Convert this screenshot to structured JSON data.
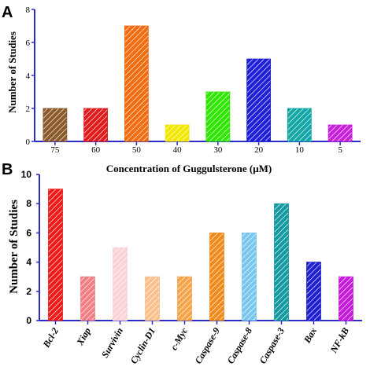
{
  "chart_data": [
    {
      "panel": "A",
      "type": "bar",
      "categories": [
        "75",
        "60",
        "50",
        "40",
        "30",
        "20",
        "10",
        "5"
      ],
      "values": [
        2,
        2,
        7,
        1,
        3,
        5,
        2,
        1
      ],
      "colors": [
        "#8B5A2B",
        "#E31A1C",
        "#F26B0F",
        "#F2E600",
        "#2EE600",
        "#1F1FD9",
        "#12A6A6",
        "#C71FD9"
      ],
      "xlabel": "Concentration of Guggulsterone (μM)",
      "ylabel": "Number of Studies",
      "ylim": [
        0,
        8
      ],
      "yticks": [
        "0",
        "2",
        "4",
        "6",
        "8"
      ],
      "pattern": "diagonal-hatch",
      "grid": false
    },
    {
      "panel": "B",
      "type": "bar",
      "categories": [
        "Bcl-2",
        "Xiap",
        "Survivin",
        "Cyclin-D1",
        "c-Myc",
        "Caspase-9",
        "Caspase-8",
        "Caspase-3",
        "Bax",
        "NF-kB"
      ],
      "values": [
        9,
        3,
        5,
        3,
        3,
        6,
        6,
        8,
        4,
        3
      ],
      "colors": [
        "#F01818",
        "#F27E84",
        "#FBD3D7",
        "#FAC08A",
        "#F5A44A",
        "#F08A1A",
        "#78C6F0",
        "#139AA0",
        "#1E1ED2",
        "#C51AD9"
      ],
      "xlabel": "",
      "ylabel": "Number of Studies",
      "ylim": [
        0,
        10
      ],
      "yticks": [
        "0",
        "2",
        "4",
        "6",
        "8",
        "10"
      ],
      "pattern": "diagonal-hatch",
      "grid": false
    }
  ],
  "axis_color": "#2B2BC8"
}
